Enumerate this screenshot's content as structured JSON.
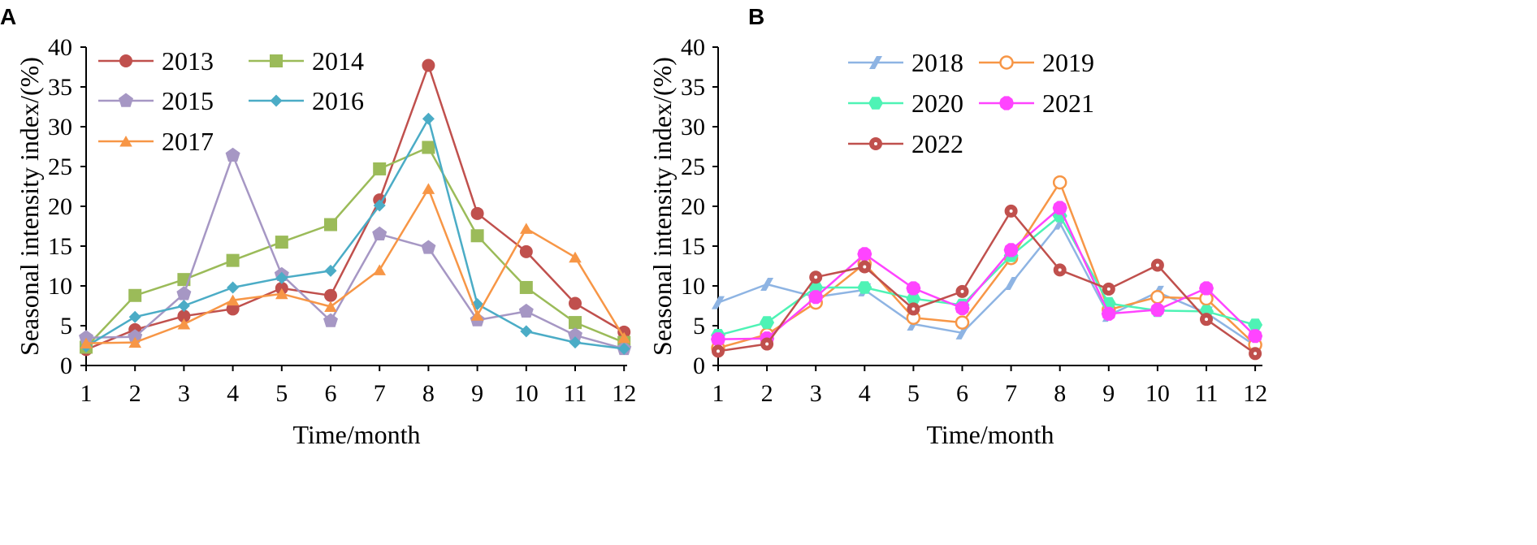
{
  "chart_data": [
    {
      "panel": "A",
      "type": "line",
      "xlabel": "Time/month",
      "ylabel": "Seasonal intensity index/(%)",
      "ylim": [
        0,
        40
      ],
      "yticks": [
        0,
        5,
        10,
        15,
        20,
        25,
        30,
        35,
        40
      ],
      "categories": [
        "1",
        "2",
        "3",
        "4",
        "5",
        "6",
        "7",
        "8",
        "9",
        "10",
        "11",
        "12"
      ],
      "legend_position": "top-left",
      "series": [
        {
          "name": "2013",
          "color": "#c0504d",
          "marker": "circle",
          "values": [
            2.0,
            4.5,
            6.2,
            7.1,
            9.7,
            8.8,
            20.8,
            37.7,
            19.1,
            14.3,
            7.8,
            4.2
          ]
        },
        {
          "name": "2014",
          "color": "#9bbb59",
          "marker": "square",
          "values": [
            2.3,
            8.8,
            10.8,
            13.2,
            15.5,
            17.7,
            24.7,
            27.4,
            16.3,
            9.8,
            5.4,
            2.9
          ]
        },
        {
          "name": "2015",
          "color": "#a697c4",
          "marker": "pentagon",
          "values": [
            3.5,
            3.6,
            9.0,
            26.4,
            11.4,
            5.6,
            16.5,
            14.8,
            5.7,
            6.8,
            3.8,
            2.1
          ]
        },
        {
          "name": "2016",
          "color": "#4bacc6",
          "marker": "diamond",
          "values": [
            2.4,
            6.1,
            7.5,
            9.8,
            11.0,
            11.9,
            20.1,
            31.0,
            7.7,
            4.3,
            2.9,
            2.1
          ]
        },
        {
          "name": "2017",
          "color": "#f79646",
          "marker": "triangle",
          "values": [
            2.8,
            2.9,
            5.2,
            8.2,
            9.0,
            7.4,
            12.0,
            22.2,
            6.3,
            17.2,
            13.6,
            3.5
          ]
        }
      ]
    },
    {
      "panel": "B",
      "type": "line",
      "xlabel": "Time/month",
      "ylabel": "Seasonal intensity index/(%)",
      "ylim": [
        0,
        40
      ],
      "yticks": [
        0,
        5,
        10,
        15,
        20,
        25,
        30,
        35,
        40
      ],
      "categories": [
        "1",
        "2",
        "3",
        "4",
        "5",
        "6",
        "7",
        "8",
        "9",
        "10",
        "11",
        "12"
      ],
      "legend_position": "top-center",
      "series": [
        {
          "name": "2018",
          "color": "#8eb4e3",
          "marker": "slash",
          "values": [
            7.9,
            10.2,
            8.6,
            9.5,
            5.2,
            4.1,
            10.3,
            17.9,
            6.3,
            9.2,
            6.6,
            2.5
          ]
        },
        {
          "name": "2019",
          "color": "#f79646",
          "marker": "open-circle",
          "values": [
            2.2,
            3.9,
            7.9,
            12.8,
            6.0,
            5.4,
            13.5,
            23.0,
            7.0,
            8.6,
            8.4,
            2.6
          ]
        },
        {
          "name": "2020",
          "color": "#4ef3b5",
          "marker": "hexagon",
          "values": [
            3.8,
            5.4,
            9.8,
            9.8,
            8.4,
            7.6,
            13.8,
            18.8,
            7.8,
            6.9,
            6.8,
            5.1
          ]
        },
        {
          "name": "2021",
          "color": "#ff44ff",
          "marker": "sun",
          "values": [
            3.3,
            3.4,
            8.6,
            14.0,
            9.7,
            7.2,
            14.5,
            19.8,
            6.5,
            7.0,
            9.7,
            3.7
          ]
        },
        {
          "name": "2022",
          "color": "#c0504d",
          "marker": "dot-circle",
          "values": [
            1.8,
            2.7,
            11.1,
            12.4,
            7.1,
            9.3,
            19.4,
            12.0,
            9.6,
            12.6,
            5.8,
            1.5
          ]
        }
      ]
    }
  ]
}
